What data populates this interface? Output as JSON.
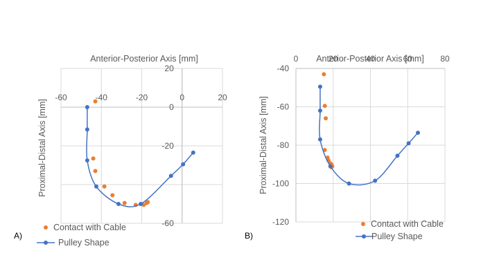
{
  "colors": {
    "contact": "#ED7D31",
    "pulley": "#4472C4",
    "grid": "#D9D9D9",
    "text": "#595959"
  },
  "chart_data": [
    {
      "type": "scatter",
      "panel_label": "A)",
      "xlabel": "Anterior-Posterior Axis [mm]",
      "ylabel": "Proximal-Distal Axis [mm]",
      "xlim": [
        -60,
        20
      ],
      "ylim": [
        -60,
        20
      ],
      "xticks": [
        -60,
        -40,
        -20,
        0,
        20
      ],
      "yticks": [
        20,
        0,
        -20,
        -40,
        -60
      ],
      "xtick_labels": [
        "-60",
        "-40",
        "-20",
        "0",
        "20"
      ],
      "ytick_labels": [
        "20",
        "0",
        "-20",
        "",
        "-60"
      ],
      "legend": [
        "Contact with Cable",
        "Pulley Shape"
      ],
      "series": [
        {
          "name": "Contact with Cable",
          "style": "markers",
          "x": [
            -43,
            -44,
            -43,
            -38.5,
            -34.5,
            -28.5,
            -23,
            -19,
            -17.5,
            -17
          ],
          "y": [
            3,
            -26.5,
            -33,
            -41,
            -45.5,
            -49.5,
            -50.5,
            -50.5,
            -49.5,
            -49
          ]
        },
        {
          "name": "Pulley Shape",
          "style": "line-markers",
          "x": [
            -47,
            -47,
            -47,
            -42.5,
            -31.5,
            -20.5,
            -5.5,
            0.5,
            5.5
          ],
          "y": [
            0,
            -11.5,
            -27.5,
            -41,
            -50,
            -50,
            -35.5,
            -29.5,
            -23.5
          ]
        }
      ]
    },
    {
      "type": "scatter",
      "panel_label": "B)",
      "xlabel": "Anterior-Posterior Axis [mm]",
      "ylabel": "Proximal-Distal Axis [mm]",
      "xlim": [
        0,
        80
      ],
      "ylim": [
        -120,
        -40
      ],
      "xticks": [
        0,
        20,
        40,
        60,
        80
      ],
      "yticks": [
        -40,
        -60,
        -80,
        -100,
        -120
      ],
      "xtick_labels": [
        "0",
        "20",
        "40",
        "60",
        "80"
      ],
      "ytick_labels": [
        "-40",
        "-60",
        "-80",
        "-100",
        "-120"
      ],
      "legend": [
        "Contact with Cable",
        "Pulley Shape"
      ],
      "series": [
        {
          "name": "Contact with Cable",
          "style": "markers",
          "x": [
            15,
            15.5,
            16,
            15.5,
            17,
            17.5,
            18.5,
            19,
            19.5,
            19
          ],
          "y": [
            -43,
            -59.5,
            -66,
            -82.5,
            -86.5,
            -88,
            -89.5,
            -90,
            -91,
            -91.5
          ]
        },
        {
          "name": "Pulley Shape",
          "style": "line-markers",
          "x": [
            13,
            13,
            13,
            18.5,
            28.5,
            42.5,
            54.5,
            60.5,
            65.5
          ],
          "y": [
            -49.5,
            -62,
            -77,
            -91,
            -100,
            -98.5,
            -85.5,
            -79,
            -73.5
          ]
        }
      ]
    }
  ]
}
